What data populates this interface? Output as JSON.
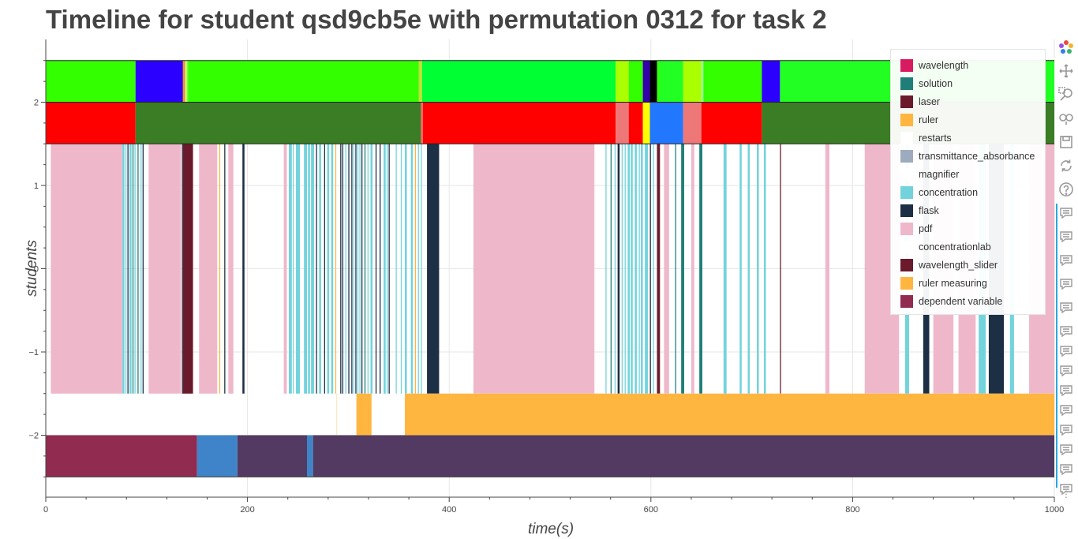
{
  "page": {
    "title": "Timeline for student qsd9cb5e with permutation 0312 for task 2"
  },
  "chart_data": {
    "type": "timeline",
    "title": "Timeline for student qsd9cb5e with permutation 0312 for task 2",
    "xlabel": "time(s)",
    "ylabel": "students",
    "xlim": [
      0,
      1000
    ],
    "ylim": [
      -2.7,
      2.7
    ],
    "xticks": [
      0,
      200,
      400,
      600,
      800,
      1000
    ],
    "yticks": [
      -2,
      -1,
      0,
      1,
      2
    ],
    "ytick_labels": [
      "−2",
      "−1",
      "0",
      "1",
      "2"
    ],
    "grid": true,
    "legend": {
      "position": "top-right",
      "entries": [
        {
          "label": "wavelength",
          "color": "#d81b60"
        },
        {
          "label": "solution",
          "color": "#1f7f78"
        },
        {
          "label": "laser",
          "color": "#6b1a2c"
        },
        {
          "label": "ruler",
          "color": "#ffb640"
        },
        {
          "label": "restarts",
          "color": "#ffffff"
        },
        {
          "label": "transmittance_absorbance",
          "color": "#9eabbe"
        },
        {
          "label": "magnifier",
          "color": "#ffffff"
        },
        {
          "label": "concentration",
          "color": "#72d3dd"
        },
        {
          "label": "flask",
          "color": "#1c2f45"
        },
        {
          "label": "pdf",
          "color": "#efb8ca"
        },
        {
          "label": "concentrationlab",
          "color": "#ffffff"
        },
        {
          "label": "wavelength_slider",
          "color": "#6b1a2c"
        },
        {
          "label": "ruler measuring",
          "color": "#ffb640"
        },
        {
          "label": "dependent variable",
          "color": "#922b50"
        }
      ]
    },
    "rows": [
      {
        "name": "top",
        "y": [
          2,
          2.5
        ],
        "segments": [
          [
            0,
            89,
            "#33ff00"
          ],
          [
            89,
            136,
            "#2b00ff"
          ],
          [
            136,
            137,
            "#ff9900"
          ],
          [
            137,
            138,
            "#ff6666"
          ],
          [
            138,
            140,
            "#ccff33"
          ],
          [
            140,
            141,
            "#66ff66"
          ],
          [
            141,
            370,
            "#33ff00"
          ],
          [
            370,
            373,
            "#ccdd33"
          ],
          [
            373,
            565,
            "#00ff33"
          ],
          [
            565,
            578,
            "#aaff00"
          ],
          [
            578,
            592,
            "#33ff00"
          ],
          [
            592,
            599,
            "#3300aa"
          ],
          [
            599,
            606,
            "#000000"
          ],
          [
            606,
            608,
            "#33ff00"
          ],
          [
            608,
            632,
            "#22ff22"
          ],
          [
            632,
            650,
            "#aaff00"
          ],
          [
            650,
            652,
            "#99ff99"
          ],
          [
            652,
            710,
            "#33ff00"
          ],
          [
            710,
            728,
            "#2b00ff"
          ],
          [
            728,
            1000,
            "#22ff22"
          ]
        ]
      },
      {
        "name": "second",
        "y": [
          1.5,
          2
        ],
        "segments": [
          [
            0,
            89,
            "#ff0000"
          ],
          [
            89,
            372,
            "#3a7d24"
          ],
          [
            372,
            374,
            "#ff6666"
          ],
          [
            374,
            565,
            "#ff0000"
          ],
          [
            565,
            578,
            "#ee7777"
          ],
          [
            578,
            592,
            "#ff0000"
          ],
          [
            592,
            599,
            "#ffff00"
          ],
          [
            599,
            632,
            "#2277ff"
          ],
          [
            632,
            650,
            "#ee7777"
          ],
          [
            650,
            710,
            "#ff0000"
          ],
          [
            710,
            1000,
            "#3a7d24"
          ]
        ]
      },
      {
        "name": "third",
        "y": [
          -1.5,
          1.5
        ],
        "segments": [
          [
            5,
            76,
            "#efb8ca"
          ],
          [
            76,
            78,
            "#72d3dd"
          ],
          [
            79,
            80,
            "#72d3dd"
          ],
          [
            81,
            82,
            "#1c2f45"
          ],
          [
            83,
            85,
            "#72d3dd"
          ],
          [
            86,
            87,
            "#1f7f78"
          ],
          [
            88,
            89,
            "#72d3dd"
          ],
          [
            91,
            92,
            "#1f7f78"
          ],
          [
            94,
            95,
            "#72d3dd"
          ],
          [
            96,
            97,
            "#1c2f45"
          ],
          [
            102,
            134,
            "#efb8ca"
          ],
          [
            135,
            136,
            "#1c2f45"
          ],
          [
            136,
            146,
            "#6b1a2c"
          ],
          [
            152,
            170,
            "#efb8ca"
          ],
          [
            172,
            173,
            "#ffb640"
          ],
          [
            177,
            178,
            "#1c2f45"
          ],
          [
            181,
            186,
            "#efb8ca"
          ],
          [
            195,
            197,
            "#1c2f45"
          ],
          [
            236,
            239,
            "#efb8ca"
          ],
          [
            241,
            244,
            "#72d3dd"
          ],
          [
            245,
            246,
            "#72d3dd"
          ],
          [
            248,
            252,
            "#72d3dd"
          ],
          [
            256,
            259,
            "#72d3dd"
          ],
          [
            260,
            262,
            "#72d3dd"
          ],
          [
            263,
            266,
            "#72d3dd"
          ],
          [
            268,
            269,
            "#1c2f45"
          ],
          [
            271,
            273,
            "#72d3dd"
          ],
          [
            276,
            277,
            "#1c2f45"
          ],
          [
            279,
            281,
            "#72d3dd"
          ],
          [
            283,
            285,
            "#72d3dd"
          ],
          [
            287,
            288,
            "#ffb640"
          ],
          [
            292,
            293,
            "#1c2f45"
          ],
          [
            294,
            295,
            "#1c2f45"
          ],
          [
            297,
            298,
            "#72d3dd"
          ],
          [
            300,
            301,
            "#1c2f45"
          ],
          [
            303,
            304,
            "#1c2f45"
          ],
          [
            305,
            306,
            "#72d3dd"
          ],
          [
            307,
            308,
            "#1c2f45"
          ],
          [
            309,
            310,
            "#72d3dd"
          ],
          [
            311,
            312,
            "#72d3dd"
          ],
          [
            313,
            314,
            "#1c2f45"
          ],
          [
            316,
            317,
            "#1f7f78"
          ],
          [
            319,
            320,
            "#72d3dd"
          ],
          [
            322,
            324,
            "#72d3dd"
          ],
          [
            327,
            328,
            "#1c2f45"
          ],
          [
            331,
            332,
            "#1c2f45"
          ],
          [
            335,
            337,
            "#72d3dd"
          ],
          [
            338,
            339,
            "#72d3dd"
          ],
          [
            340,
            341,
            "#1c2f45"
          ],
          [
            347,
            348,
            "#72d3dd"
          ],
          [
            352,
            353,
            "#72d3dd"
          ],
          [
            356,
            358,
            "#72d3dd"
          ],
          [
            362,
            364,
            "#72d3dd"
          ],
          [
            366,
            367,
            "#ffb640"
          ],
          [
            369,
            370,
            "#72d3dd"
          ],
          [
            372,
            373,
            "#72d3dd"
          ],
          [
            378,
            390,
            "#1c2f45"
          ],
          [
            424,
            544,
            "#efb8ca"
          ],
          [
            555,
            556,
            "#72d3dd"
          ],
          [
            560,
            561,
            "#1f7f78"
          ],
          [
            564,
            565,
            "#72d3dd"
          ],
          [
            567,
            569,
            "#1c2f45"
          ],
          [
            571,
            572,
            "#72d3dd"
          ],
          [
            574,
            575,
            "#72d3dd"
          ],
          [
            577,
            579,
            "#72d3dd"
          ],
          [
            580,
            582,
            "#72d3dd"
          ],
          [
            584,
            586,
            "#72d3dd"
          ],
          [
            588,
            589,
            "#72d3dd"
          ],
          [
            590,
            592,
            "#72d3dd"
          ],
          [
            594,
            597,
            "#72d3dd"
          ],
          [
            599,
            600,
            "#1c2f45"
          ],
          [
            602,
            603,
            "#72d3dd"
          ],
          [
            606,
            609,
            "#6b1a2c"
          ],
          [
            613,
            618,
            "#efb8ca"
          ],
          [
            624,
            625,
            "#1f7f78"
          ],
          [
            630,
            633,
            "#1f7f78"
          ],
          [
            640,
            643,
            "#efb8ca"
          ],
          [
            648,
            651,
            "#1f7f78"
          ],
          [
            672,
            675,
            "#72d3dd"
          ],
          [
            688,
            690,
            "#72d3dd"
          ],
          [
            696,
            698,
            "#72d3dd"
          ],
          [
            705,
            707,
            "#72d3dd"
          ],
          [
            712,
            714,
            "#72d3dd"
          ],
          [
            728,
            729,
            "#6b1a2c"
          ],
          [
            773,
            777,
            "#efb8ca"
          ],
          [
            812,
            846,
            "#efb8ca"
          ],
          [
            852,
            856,
            "#72d3dd"
          ],
          [
            870,
            876,
            "#1c2f45"
          ],
          [
            880,
            900,
            "#efb8ca"
          ],
          [
            905,
            922,
            "#efb8ca"
          ],
          [
            925,
            932,
            "#72d3dd"
          ],
          [
            935,
            950,
            "#1c2f45"
          ],
          [
            956,
            960,
            "#72d3dd"
          ],
          [
            975,
            1000,
            "#efb8ca"
          ]
        ]
      },
      {
        "name": "fourth",
        "y": [
          -2,
          -1.5
        ],
        "segments": [
          [
            288,
            289,
            "#f5e8c8"
          ],
          [
            308,
            323,
            "#ffb640"
          ],
          [
            356,
            1000,
            "#ffb640"
          ]
        ]
      },
      {
        "name": "bottom",
        "y": [
          -2.5,
          -2
        ],
        "segments": [
          [
            0,
            150,
            "#922b50"
          ],
          [
            150,
            190,
            "#3f84c8"
          ],
          [
            190,
            259,
            "#523a62"
          ],
          [
            259,
            265,
            "#3f84c8"
          ],
          [
            265,
            1000,
            "#523a62"
          ]
        ]
      }
    ]
  },
  "toolbar": {
    "tools": [
      "bokeh-logo-icon",
      "pan-icon",
      "box-zoom-icon",
      "wheel-zoom-icon",
      "save-icon",
      "reset-icon",
      "help-icon",
      "hover-icon",
      "hover-icon",
      "hover-icon",
      "hover-icon",
      "hover-icon",
      "hover-icon",
      "hover-icon",
      "hover-icon",
      "hover-icon",
      "hover-icon",
      "hover-icon",
      "hover-icon",
      "hover-icon",
      "hover-icon"
    ],
    "more_label": "⋮"
  }
}
